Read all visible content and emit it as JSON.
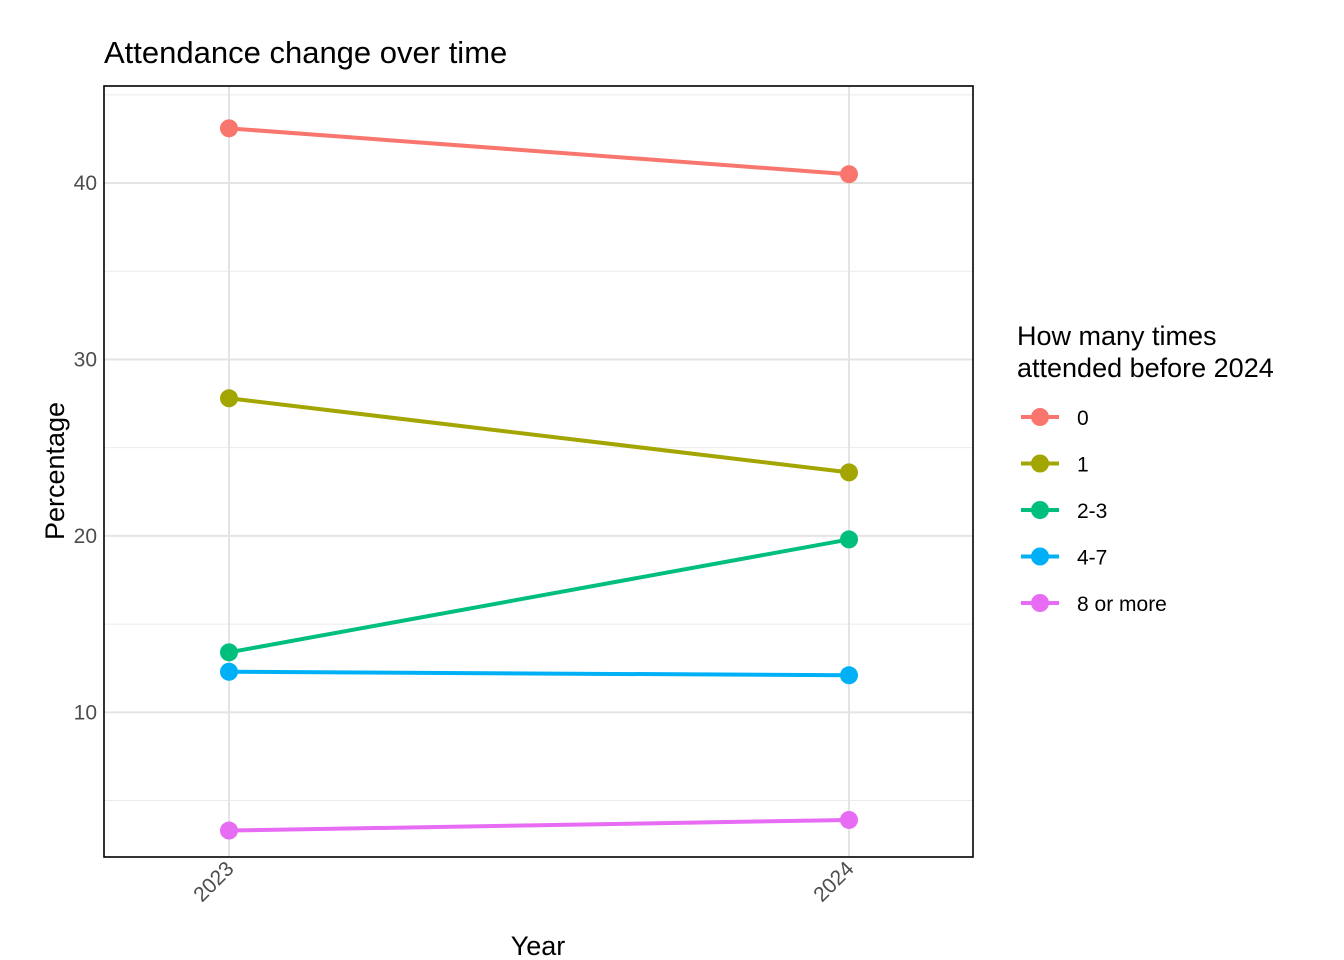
{
  "chart_data": {
    "type": "line",
    "title": "Attendance change over time",
    "xlabel": "Year",
    "ylabel": "Percentage",
    "x": [
      "2023",
      "2024"
    ],
    "ylim": [
      1.8,
      45.5
    ],
    "y_ticks": [
      10,
      20,
      30,
      40
    ],
    "grid": true,
    "legend": {
      "title_lines": [
        "How many times",
        "attended before 2024"
      ],
      "placement": "right"
    },
    "series": [
      {
        "name": "0",
        "values": [
          43.1,
          40.5
        ],
        "color": "#F8766D"
      },
      {
        "name": "1",
        "values": [
          27.8,
          23.6
        ],
        "color": "#A3A500"
      },
      {
        "name": "2-3",
        "values": [
          13.4,
          19.8
        ],
        "color": "#00BF7D"
      },
      {
        "name": "4-7",
        "values": [
          12.3,
          12.1
        ],
        "color": "#00B0F6"
      },
      {
        "name": "8 or more",
        "values": [
          3.3,
          3.9
        ],
        "color": "#E76BF3"
      }
    ]
  }
}
